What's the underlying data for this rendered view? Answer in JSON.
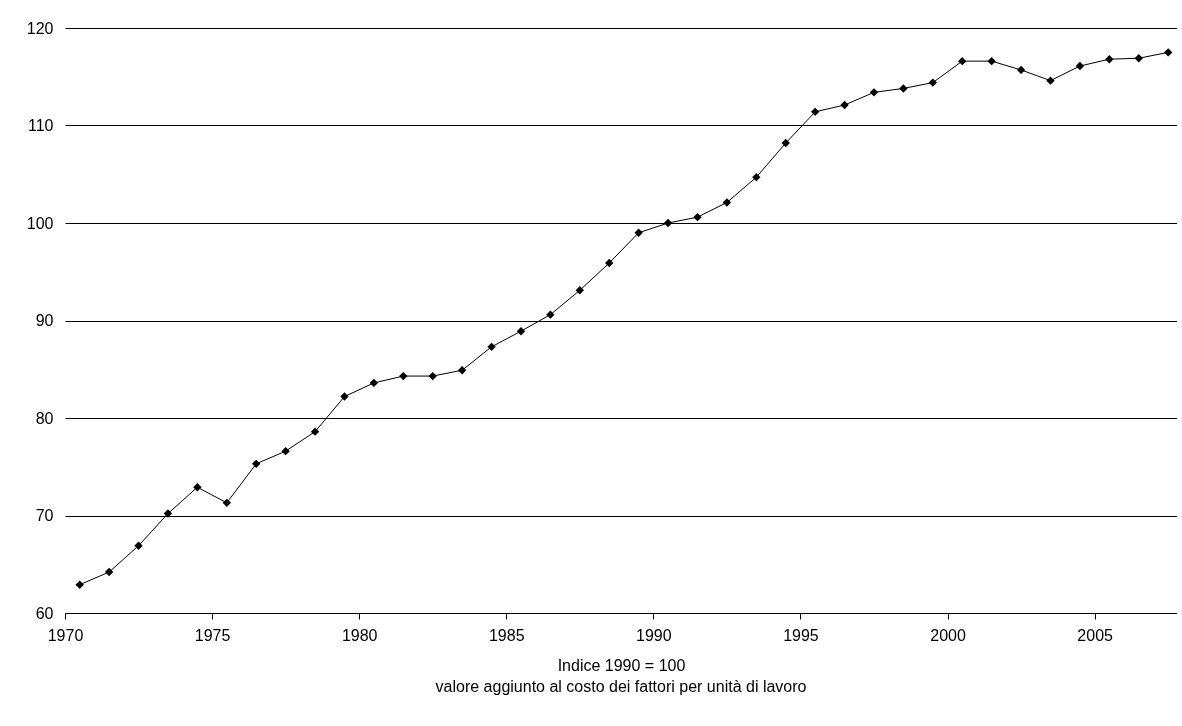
{
  "chart_data": {
    "type": "line",
    "xlabel": "Indice 1990 = 100",
    "annotations": [
      "valore aggiunto al costo dei fattori per unità di lavoro"
    ],
    "x": [
      1970.5,
      1971.5,
      1972.5,
      1973.5,
      1974.5,
      1975.5,
      1976.5,
      1977.5,
      1978.5,
      1979.5,
      1980.5,
      1981.5,
      1982.5,
      1983.5,
      1984.5,
      1985.5,
      1986.5,
      1987.5,
      1988.5,
      1989.5,
      1990.5,
      1991.5,
      1992.5,
      1993.5,
      1994.5,
      1995.5,
      1996.5,
      1997.5,
      1998.5,
      1999.5,
      2000.5,
      2001.5,
      2002.5,
      2003.5,
      2004.5,
      2005.5,
      2006.5,
      2007.5
    ],
    "series": [
      {
        "color": "#000000",
        "values": [
          62.9,
          64.2,
          66.9,
          70.2,
          72.9,
          71.3,
          75.3,
          76.6,
          78.6,
          82.2,
          83.6,
          84.3,
          84.3,
          84.9,
          87.3,
          88.9,
          90.6,
          93.1,
          95.9,
          99.0,
          100.0,
          100.6,
          102.1,
          104.7,
          108.2,
          111.4,
          112.1,
          113.4,
          113.8,
          114.4,
          116.6,
          116.6,
          115.7,
          114.6,
          116.1,
          116.8,
          116.9,
          117.5
        ]
      }
    ],
    "xlim": [
      1970,
      2007.8
    ],
    "xticks": [
      1970,
      1975,
      1980,
      1985,
      1990,
      1995,
      2000,
      2005
    ],
    "ylim": [
      60,
      120
    ],
    "yticks": [
      60,
      70,
      80,
      90,
      100,
      110,
      120
    ],
    "grid": "y",
    "marker": "diamond",
    "line_style": "solid"
  }
}
